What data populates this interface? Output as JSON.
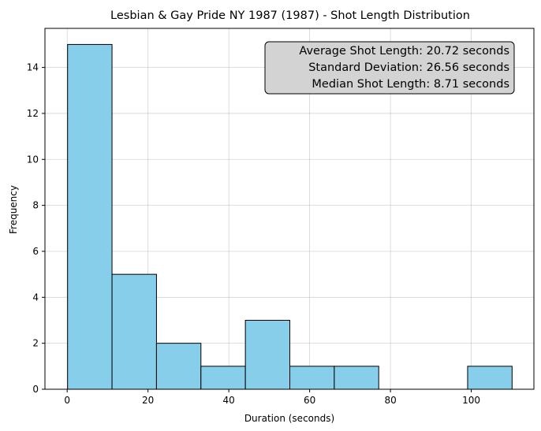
{
  "chart_data": {
    "type": "bar",
    "title": "Lesbian & Gay Pride NY 1987 (1987) - Shot Length Distribution",
    "xlabel": "Duration (seconds)",
    "ylabel": "Frequency",
    "xlim": [
      -5.5,
      115.5
    ],
    "ylim": [
      0,
      15.7
    ],
    "grid": true,
    "bin_edges": [
      0.1,
      11.1,
      22.1,
      33.1,
      44.1,
      55.1,
      66.1,
      77.1,
      88.1,
      99.1,
      110.1
    ],
    "values": [
      15,
      5,
      2,
      1,
      3,
      1,
      1,
      0,
      0,
      1
    ],
    "xticks": [
      0,
      20,
      40,
      60,
      80,
      100
    ],
    "yticks": [
      0,
      2,
      4,
      6,
      8,
      10,
      12,
      14
    ],
    "stats_box": {
      "placement": "top-right",
      "lines": [
        "Average Shot Length: 20.72 seconds",
        "Standard Deviation: 26.56 seconds",
        "Median Shot Length: 8.71 seconds"
      ]
    }
  }
}
